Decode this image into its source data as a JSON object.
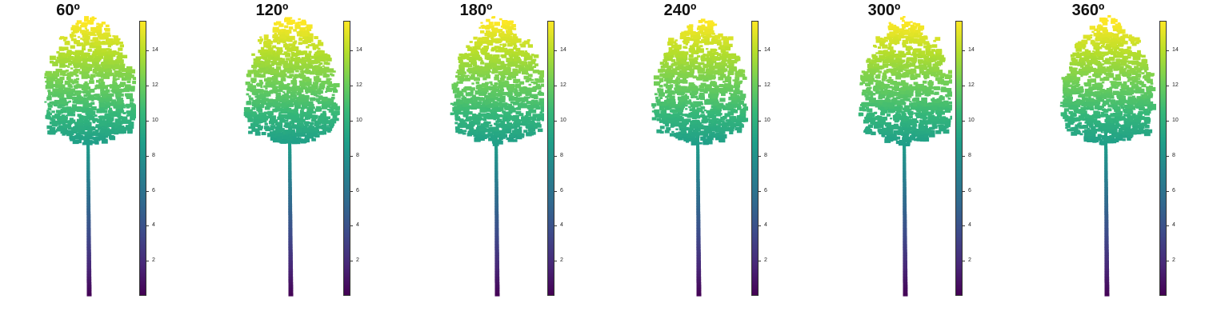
{
  "chart_data": [
    {
      "type": "scatter",
      "title": "60º",
      "colorbar": {
        "range": [
          0,
          15.7
        ],
        "ticks": [
          "2",
          "4",
          "6",
          "8",
          "10",
          "12",
          "14"
        ],
        "colors": [
          "#440154",
          "#482878",
          "#3e4989",
          "#31688e",
          "#26828e",
          "#1f9e89",
          "#35b779",
          "#6ece58",
          "#b5de2b",
          "#fde725"
        ]
      }
    },
    {
      "type": "scatter",
      "title": "120º",
      "colorbar": {
        "range": [
          0,
          15.7
        ],
        "ticks": [
          "2",
          "4",
          "6",
          "8",
          "10",
          "12",
          "14"
        ],
        "colors": [
          "#440154",
          "#482878",
          "#3e4989",
          "#31688e",
          "#26828e",
          "#1f9e89",
          "#35b779",
          "#6ece58",
          "#b5de2b",
          "#fde725"
        ]
      }
    },
    {
      "type": "scatter",
      "title": "180º",
      "colorbar": {
        "range": [
          0,
          15.7
        ],
        "ticks": [
          "2",
          "4",
          "6",
          "8",
          "10",
          "12",
          "14"
        ],
        "colors": [
          "#440154",
          "#482878",
          "#3e4989",
          "#31688e",
          "#26828e",
          "#1f9e89",
          "#35b779",
          "#6ece58",
          "#b5de2b",
          "#fde725"
        ]
      }
    },
    {
      "type": "scatter",
      "title": "240º",
      "colorbar": {
        "range": [
          0,
          15.7
        ],
        "ticks": [
          "2",
          "4",
          "6",
          "8",
          "10",
          "12",
          "14"
        ],
        "colors": [
          "#440154",
          "#482878",
          "#3e4989",
          "#31688e",
          "#26828e",
          "#1f9e89",
          "#35b779",
          "#6ece58",
          "#b5de2b",
          "#fde725"
        ]
      }
    },
    {
      "type": "scatter",
      "title": "300º",
      "colorbar": {
        "range": [
          0,
          15.7
        ],
        "ticks": [
          "2",
          "4",
          "6",
          "8",
          "10",
          "12",
          "14"
        ],
        "colors": [
          "#440154",
          "#482878",
          "#3e4989",
          "#31688e",
          "#26828e",
          "#1f9e89",
          "#35b779",
          "#6ece58",
          "#b5de2b",
          "#fde725"
        ]
      }
    },
    {
      "type": "scatter",
      "title": "360º",
      "colorbar": {
        "range": [
          0,
          15.7
        ],
        "ticks": [
          "2",
          "4",
          "6",
          "8",
          "10",
          "12",
          "14"
        ],
        "colors": [
          "#440154",
          "#482878",
          "#3e4989",
          "#31688e",
          "#26828e",
          "#1f9e89",
          "#35b779",
          "#6ece58",
          "#b5de2b",
          "#fde725"
        ]
      }
    }
  ]
}
